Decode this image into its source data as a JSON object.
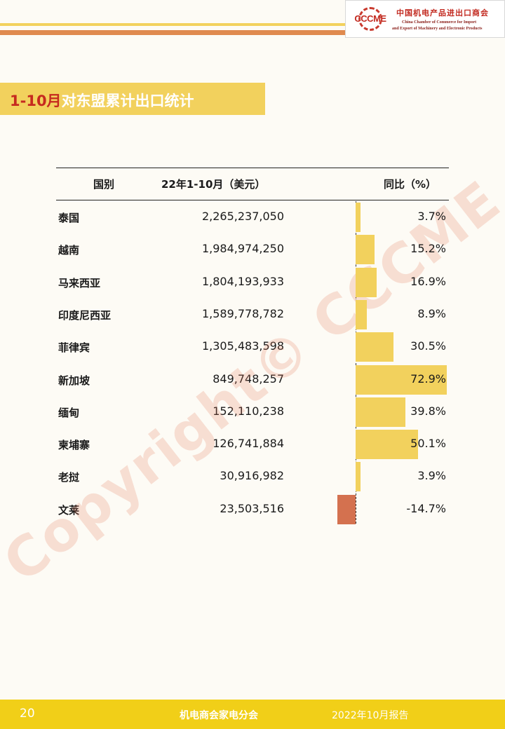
{
  "header": {
    "logo_mark": "CCCME",
    "logo_cn": "中国机电产品进出口商会",
    "logo_en_line1": "China Chamber of Commerce for Import",
    "logo_en_line2": "and Export of Machinery and Electronic Products",
    "colors": {
      "stripe_yellow": "#f2d15d",
      "stripe_orange": "#e08a4f",
      "logo_red": "#c22a20"
    }
  },
  "title": {
    "accent": "1-10月",
    "rest": "对东盟累计出口统计"
  },
  "table": {
    "columns": [
      "国别",
      "22年1-10月（美元）",
      "同比（%）"
    ],
    "rows": [
      {
        "country": "泰国",
        "value": "2,265,237,050",
        "yoy": "3.7%",
        "yoy_num": 3.7
      },
      {
        "country": "越南",
        "value": "1,984,974,250",
        "yoy": "15.2%",
        "yoy_num": 15.2
      },
      {
        "country": "马来西亚",
        "value": "1,804,193,933",
        "yoy": "16.9%",
        "yoy_num": 16.9
      },
      {
        "country": "印度尼西亚",
        "value": "1,589,778,782",
        "yoy": "8.9%",
        "yoy_num": 8.9
      },
      {
        "country": "菲律宾",
        "value": "1,305,483,598",
        "yoy": "30.5%",
        "yoy_num": 30.5
      },
      {
        "country": "新加坡",
        "value": "849,748,257",
        "yoy": "72.9%",
        "yoy_num": 72.9
      },
      {
        "country": "缅甸",
        "value": "152,110,238",
        "yoy": "39.8%",
        "yoy_num": 39.8
      },
      {
        "country": "柬埔寨",
        "value": "126,741,884",
        "yoy": "50.1%",
        "yoy_num": 50.1
      },
      {
        "country": "老挝",
        "value": "30,916,982",
        "yoy": "3.9%",
        "yoy_num": 3.9
      },
      {
        "country": "文莱",
        "value": "23,503,516",
        "yoy": "-14.7%",
        "yoy_num": -14.7
      }
    ],
    "bar_colors": {
      "positive": "#f2d15d",
      "negative": "#d4714f"
    }
  },
  "watermark": "Copyright© CCCME",
  "footer": {
    "page_number": "20",
    "center": "机电商会家电分会",
    "right": "2022年10月报告",
    "color": "#f1cf18"
  }
}
